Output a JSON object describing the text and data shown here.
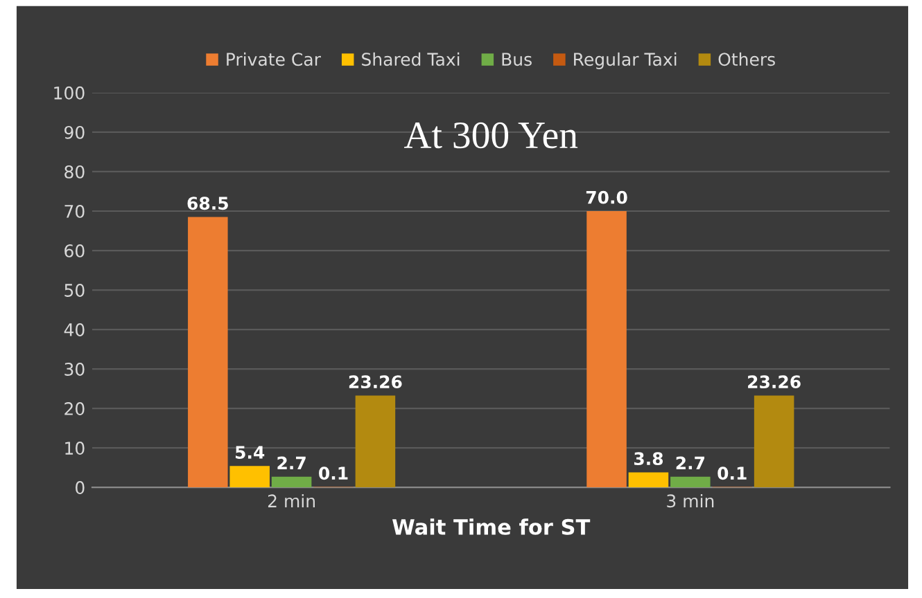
{
  "chart_data": {
    "type": "bar",
    "title": "At 300 Yen",
    "xlabel": "Wait Time for ST",
    "categories": [
      "2 min",
      "3 min"
    ],
    "series": [
      {
        "name": "Private Car",
        "color": "#ed7d31",
        "values": [
          68.5,
          70.0
        ],
        "value_labels": [
          "68.5",
          "70.0"
        ]
      },
      {
        "name": "Shared Taxi",
        "color": "#ffc000",
        "values": [
          5.4,
          3.8
        ],
        "value_labels": [
          "5.4",
          "3.8"
        ]
      },
      {
        "name": "Bus",
        "color": "#70ad47",
        "values": [
          2.7,
          2.7
        ],
        "value_labels": [
          "2.7",
          "2.7"
        ]
      },
      {
        "name": "Regular Taxi",
        "color": "#c55a11",
        "values": [
          0.1,
          0.1
        ],
        "value_labels": [
          "0.1",
          "0.1"
        ]
      },
      {
        "name": "Others",
        "color": "#b38a10",
        "values": [
          23.26,
          23.26
        ],
        "value_labels": [
          "23.26",
          "23.26"
        ]
      }
    ],
    "ylim": [
      0,
      100
    ],
    "yticks": [
      0,
      10,
      20,
      30,
      40,
      50,
      60,
      70,
      80,
      90,
      100
    ],
    "grid": "y",
    "legend": "top"
  }
}
